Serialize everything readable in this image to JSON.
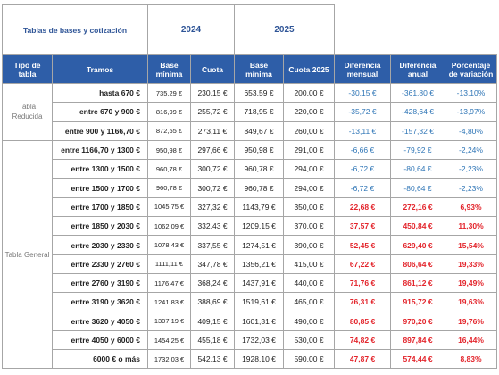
{
  "table": {
    "top": {
      "title": "Tablas de bases y cotización",
      "year_a": "2024",
      "year_b": "2025"
    },
    "columns": [
      "Tipo de tabla",
      "Tramos",
      "Base mínima",
      "Cuota",
      "Base mínima",
      "Cuota 2025",
      "Diferencia mensual",
      "Diferencia anual",
      "Porcentaje de variación"
    ],
    "groups": [
      {
        "label": "Tabla Reducida",
        "rows": [
          [
            "hasta 670 €",
            "735,29 €",
            "230,15 €",
            "653,59 €",
            "200,00 €",
            "-30,15 €",
            "-361,80 €",
            "-13,10%"
          ],
          [
            "entre 670 y 900 €",
            "816,99 €",
            "255,72 €",
            "718,95 €",
            "220,00 €",
            "-35,72 €",
            "-428,64 €",
            "-13,97%"
          ],
          [
            "entre 900 y 1166,70 €",
            "872,55 €",
            "273,11 €",
            "849,67 €",
            "260,00 €",
            "-13,11 €",
            "-157,32 €",
            "-4,80%"
          ]
        ]
      },
      {
        "label": "Tabla General",
        "rows": [
          [
            "entre 1166,70 y 1300 €",
            "950,98 €",
            "297,66 €",
            "950,98 €",
            "291,00 €",
            "-6,66 €",
            "-79,92 €",
            "-2,24%"
          ],
          [
            "entre 1300 y 1500 €",
            "960,78 €",
            "300,72 €",
            "960,78 €",
            "294,00 €",
            "-6,72 €",
            "-80,64 €",
            "-2,23%"
          ],
          [
            "entre 1500 y 1700 €",
            "960,78 €",
            "300,72 €",
            "960,78 €",
            "294,00 €",
            "-6,72 €",
            "-80,64 €",
            "-2,23%"
          ],
          [
            "entre 1700 y 1850 €",
            "1045,75 €",
            "327,32 €",
            "1143,79 €",
            "350,00 €",
            "22,68 €",
            "272,16 €",
            "6,93%"
          ],
          [
            "entre 1850 y 2030 €",
            "1062,09 €",
            "332,43 €",
            "1209,15 €",
            "370,00 €",
            "37,57 €",
            "450,84 €",
            "11,30%"
          ],
          [
            "entre 2030 y 2330 €",
            "1078,43 €",
            "337,55 €",
            "1274,51 €",
            "390,00 €",
            "52,45 €",
            "629,40 €",
            "15,54%"
          ],
          [
            "entre 2330 y 2760 €",
            "1111,11 €",
            "347,78 €",
            "1356,21 €",
            "415,00 €",
            "67,22 €",
            "806,64 €",
            "19,33%"
          ],
          [
            "entre 2760 y 3190 €",
            "1176,47 €",
            "368,24 €",
            "1437,91 €",
            "440,00 €",
            "71,76 €",
            "861,12 €",
            "19,49%"
          ],
          [
            "entre 3190 y 3620 €",
            "1241,83 €",
            "388,69 €",
            "1519,61 €",
            "465,00 €",
            "76,31 €",
            "915,72 €",
            "19,63%"
          ],
          [
            "entre 3620 y 4050 €",
            "1307,19 €",
            "409,15 €",
            "1601,31 €",
            "490,00 €",
            "80,85 €",
            "970,20 €",
            "19,76%"
          ],
          [
            "entre 4050 y 6000 €",
            "1454,25 €",
            "455,18 €",
            "1732,03 €",
            "530,00 €",
            "74,82 €",
            "897,84 €",
            "16,44%"
          ],
          [
            "6000 € o más",
            "1732,03 €",
            "542,13 €",
            "1928,10 €",
            "590,00 €",
            "47,87 €",
            "574,44 €",
            "8,83%"
          ]
        ]
      }
    ]
  }
}
